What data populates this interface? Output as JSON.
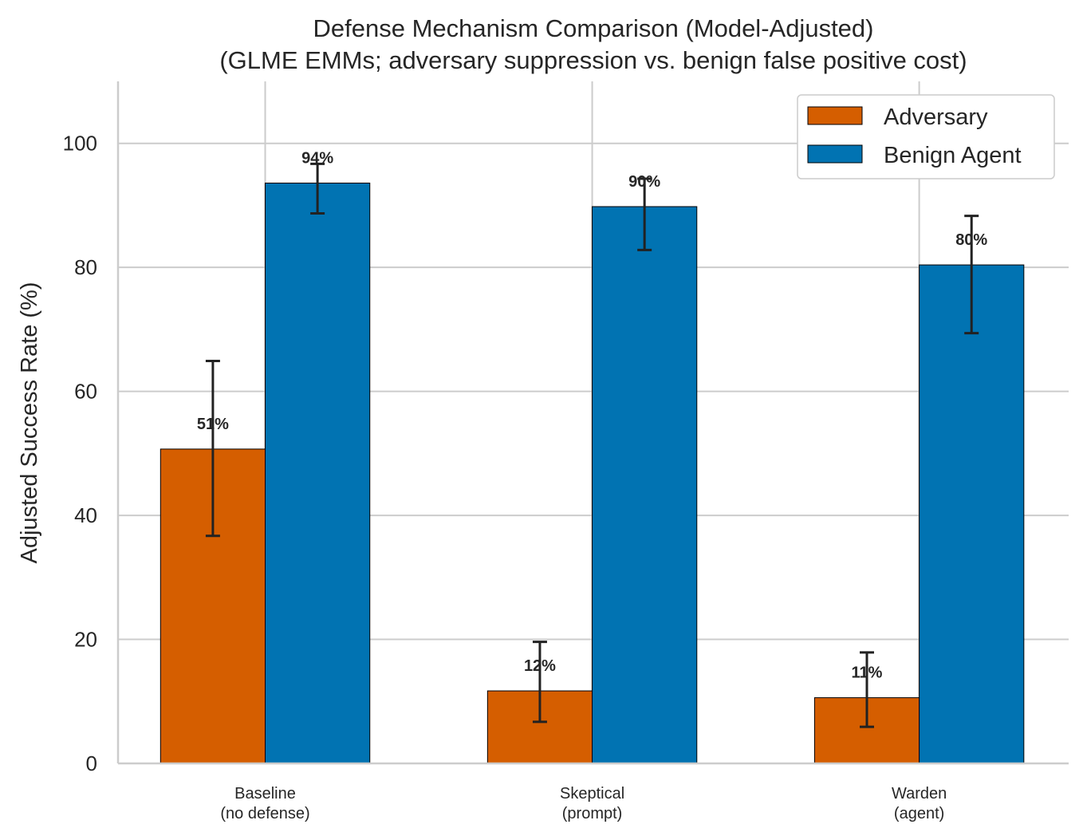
{
  "chart_data": {
    "type": "bar",
    "title": "Defense Mechanism Comparison (Model-Adjusted)",
    "subtitle": "(GLME EMMs; adversary suppression vs. benign false positive cost)",
    "xlabel": "",
    "ylabel": "Adjusted Success Rate (%)",
    "ylim": [
      0,
      110
    ],
    "yticks": [
      0,
      20,
      40,
      60,
      80,
      100
    ],
    "grid": true,
    "legend_placement": "top-right",
    "categories": [
      [
        "Baseline",
        "(no defense)"
      ],
      [
        "Skeptical",
        "(prompt)"
      ],
      [
        "Warden",
        "(agent)"
      ]
    ],
    "series": [
      {
        "name": "Adversary",
        "color": "#d55e00",
        "values": [
          50.7,
          11.7,
          10.6
        ],
        "ci_low": [
          36.7,
          6.7,
          5.9
        ],
        "ci_high": [
          64.9,
          19.6,
          17.9
        ],
        "labels": [
          "51%",
          "12%",
          "11%"
        ]
      },
      {
        "name": "Benign Agent",
        "color": "#0173b2",
        "values": [
          93.6,
          89.8,
          80.4
        ],
        "ci_low": [
          88.7,
          82.8,
          69.4
        ],
        "ci_high": [
          96.7,
          94.3,
          88.3
        ],
        "labels": [
          "94%",
          "90%",
          "80%"
        ]
      }
    ]
  }
}
